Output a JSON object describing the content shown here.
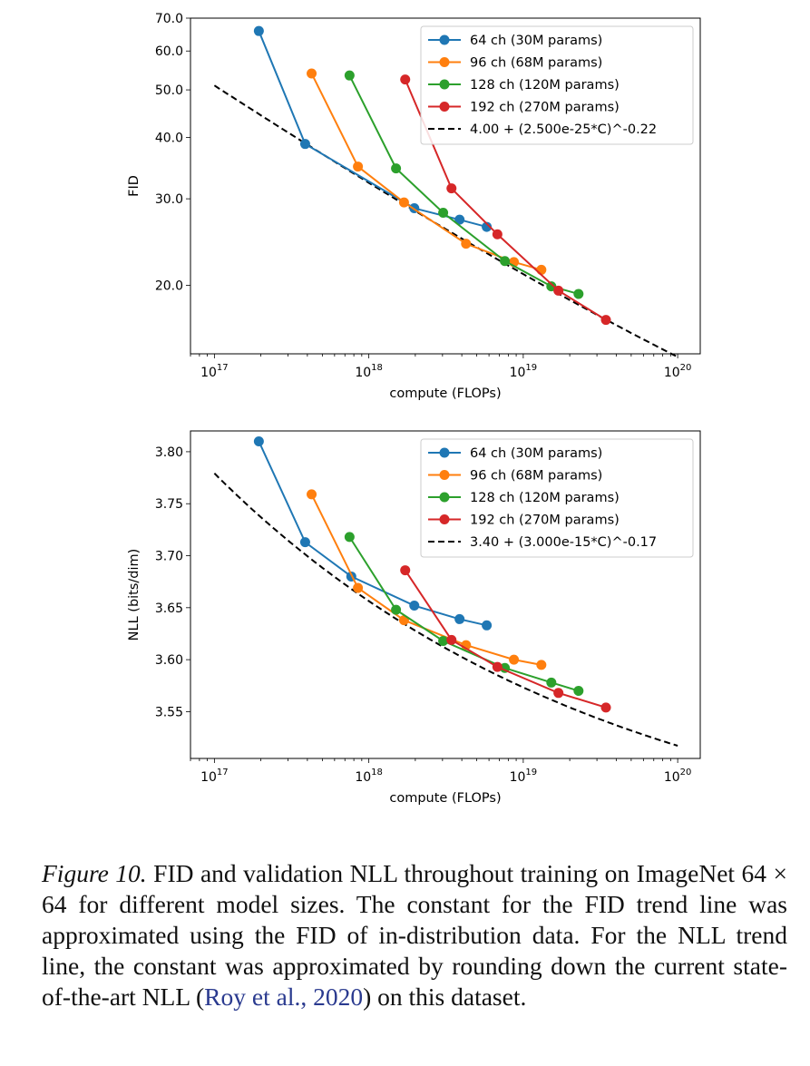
{
  "chart_data": [
    {
      "type": "line",
      "xlabel": "compute (FLOPs)",
      "ylabel": "FID",
      "xscale": "log",
      "yscale": "log",
      "xlim": [
        7e+16,
        1.4e+20
      ],
      "ylim": [
        14.5,
        70
      ],
      "xticks": [
        1e+17,
        1e+18,
        1e+19,
        1e+20
      ],
      "xtick_labels": [
        [
          "10",
          "17"
        ],
        [
          "10",
          "18"
        ],
        [
          "10",
          "19"
        ],
        [
          "10",
          "20"
        ]
      ],
      "yticks": [
        20,
        30,
        40,
        50,
        60,
        70
      ],
      "ytick_labels": [
        "20.0",
        "30.0",
        "40.0",
        "50.0",
        "60.0",
        "70.0"
      ],
      "grid": false,
      "legend_position": "top-right",
      "series": [
        {
          "name": "64 ch (30M params)",
          "color": "#1f77b4",
          "x": [
            1.94e+17,
            3.87e+17,
            1.97e+18,
            3.87e+18,
            5.8e+18
          ],
          "y": [
            65.9,
            38.8,
            28.7,
            27.2,
            26.3
          ]
        },
        {
          "name": "96 ch (68M params)",
          "color": "#ff7f0e",
          "x": [
            4.26e+17,
            8.5e+17,
            1.69e+18,
            4.26e+18,
            8.7e+18,
            1.31e+19
          ],
          "y": [
            54.0,
            34.9,
            29.5,
            24.3,
            22.3,
            21.5
          ]
        },
        {
          "name": "128 ch (120M params)",
          "color": "#2ca02c",
          "x": [
            7.5e+17,
            1.5e+18,
            3.03e+18,
            7.6e+18,
            1.52e+19,
            2.28e+19
          ],
          "y": [
            53.5,
            34.6,
            28.1,
            22.4,
            19.9,
            19.2
          ]
        },
        {
          "name": "192 ch (270M params)",
          "color": "#d62728",
          "x": [
            1.72e+18,
            3.43e+18,
            6.8e+18,
            1.69e+19,
            3.43e+19
          ],
          "y": [
            52.5,
            31.5,
            25.4,
            19.5,
            17.0
          ]
        }
      ],
      "trend": {
        "name": "4.00 + (2.500e-25*C)^-0.22",
        "offset": 4.0,
        "scale": 2.5e-25,
        "exponent": -0.22,
        "x_range": [
          1e+17,
          1e+20
        ],
        "color": "#000000"
      }
    },
    {
      "type": "line",
      "xlabel": "compute (FLOPs)",
      "ylabel": "NLL (bits/dim)",
      "xscale": "log",
      "yscale": "linear",
      "xlim": [
        7e+16,
        1.4e+20
      ],
      "ylim": [
        3.505,
        3.82
      ],
      "xticks": [
        1e+17,
        1e+18,
        1e+19,
        1e+20
      ],
      "xtick_labels": [
        [
          "10",
          "17"
        ],
        [
          "10",
          "18"
        ],
        [
          "10",
          "19"
        ],
        [
          "10",
          "20"
        ]
      ],
      "yticks": [
        3.55,
        3.6,
        3.65,
        3.7,
        3.75,
        3.8
      ],
      "ytick_labels": [
        "3.55",
        "3.60",
        "3.65",
        "3.70",
        "3.75",
        "3.80"
      ],
      "grid": false,
      "legend_position": "top-right",
      "series": [
        {
          "name": "64 ch (30M params)",
          "color": "#1f77b4",
          "x": [
            1.94e+17,
            3.87e+17,
            7.7e+17,
            1.97e+18,
            3.87e+18,
            5.8e+18
          ],
          "y": [
            3.81,
            3.713,
            3.68,
            3.652,
            3.639,
            3.633
          ]
        },
        {
          "name": "96 ch (68M params)",
          "color": "#ff7f0e",
          "x": [
            4.26e+17,
            8.5e+17,
            1.69e+18,
            4.26e+18,
            8.7e+18,
            1.31e+19
          ],
          "y": [
            3.759,
            3.669,
            3.638,
            3.614,
            3.6,
            3.595
          ]
        },
        {
          "name": "128 ch (120M params)",
          "color": "#2ca02c",
          "x": [
            7.5e+17,
            1.5e+18,
            3.03e+18,
            7.6e+18,
            1.52e+19,
            2.28e+19
          ],
          "y": [
            3.718,
            3.648,
            3.618,
            3.592,
            3.578,
            3.57
          ]
        },
        {
          "name": "192 ch (270M params)",
          "color": "#d62728",
          "x": [
            1.72e+18,
            3.43e+18,
            6.8e+18,
            1.69e+19,
            3.43e+19
          ],
          "y": [
            3.686,
            3.619,
            3.593,
            3.568,
            3.554
          ]
        }
      ],
      "trend": {
        "name": "3.40 + (3.000e-15*C)^-0.17",
        "offset": 3.4,
        "scale": 3e-15,
        "exponent": -0.17,
        "x_range": [
          1e+17,
          1e+20
        ],
        "color": "#000000"
      }
    }
  ],
  "caption": {
    "label": "Figure 10.",
    "text_before": " FID and validation NLL throughout training on ImageNet 64 × 64 for different model sizes. The constant for the FID trend line was approximated using the FID of in-distribution data. For the NLL trend line, the constant was approximated by rounding down the current state-of-the-art NLL (",
    "citation": "Roy et al., 2020",
    "text_after": ") on this dataset."
  }
}
